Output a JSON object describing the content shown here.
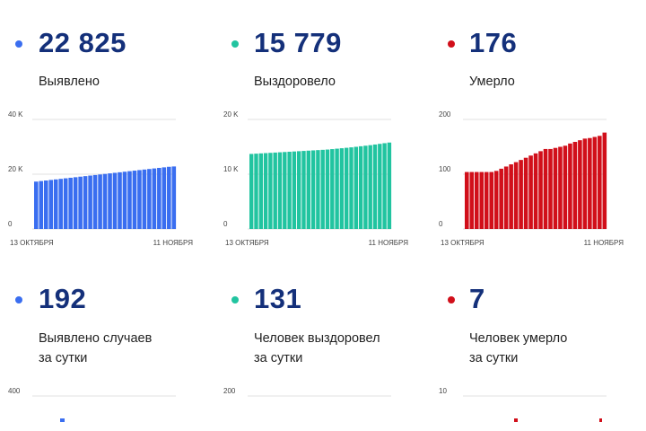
{
  "stats": [
    {
      "value": "22 825",
      "label": "Выявлено",
      "color": "#3a6ef0"
    },
    {
      "value": "15 779",
      "label": "Выздоровело",
      "color": "#21c4a0"
    },
    {
      "value": "176",
      "label": "Умерло",
      "color": "#d10f1a"
    },
    {
      "value": "192",
      "label": "Выявлено случаев\nза сутки",
      "color": "#3a6ef0"
    },
    {
      "value": "131",
      "label": "Человек выздоровел\nза сутки",
      "color": "#21c4a0"
    },
    {
      "value": "7",
      "label": "Человек умерло\nза сутки",
      "color": "#d10f1a"
    }
  ],
  "chart_data": [
    {
      "type": "bar",
      "color": "#3a6ef0",
      "xlabels": [
        "13 ОКТЯБРЯ",
        "11 НОЯБРЯ"
      ],
      "yticks": [
        "0",
        "20 K",
        "40 K"
      ],
      "ylim": [
        0,
        40000
      ],
      "grid": true,
      "values": [
        17300,
        17500,
        17700,
        17900,
        18100,
        18300,
        18500,
        18700,
        18900,
        19100,
        19300,
        19500,
        19700,
        19900,
        20100,
        20300,
        20500,
        20700,
        20900,
        21100,
        21300,
        21500,
        21700,
        21900,
        22100,
        22300,
        22500,
        22700,
        22825
      ]
    },
    {
      "type": "bar",
      "color": "#21c4a0",
      "xlabels": [
        "13 ОКТЯБРЯ",
        "11 НОЯБРЯ"
      ],
      "yticks": [
        "0",
        "10 K",
        "20 K"
      ],
      "ylim": [
        0,
        20000
      ],
      "grid": true,
      "values": [
        13700,
        13750,
        13800,
        13850,
        13900,
        13950,
        14000,
        14050,
        14100,
        14150,
        14200,
        14250,
        14300,
        14350,
        14400,
        14450,
        14500,
        14580,
        14660,
        14740,
        14820,
        14900,
        15000,
        15100,
        15200,
        15300,
        15420,
        15540,
        15660,
        15779
      ]
    },
    {
      "type": "bar",
      "color": "#d10f1a",
      "xlabels": [
        "13 ОКТЯБРЯ",
        "11 НОЯБРЯ"
      ],
      "yticks": [
        "0",
        "100",
        "200"
      ],
      "ylim": [
        0,
        200
      ],
      "grid": true,
      "values": [
        104,
        104,
        104,
        104,
        104,
        104,
        106,
        110,
        114,
        118,
        122,
        126,
        130,
        134,
        138,
        142,
        146,
        146,
        148,
        150,
        152,
        156,
        159,
        162,
        165,
        166,
        168,
        170,
        176
      ]
    },
    {
      "type": "bar",
      "color": "#3a6ef0",
      "yticks": [
        "400"
      ],
      "ylim": [
        0,
        400
      ],
      "grid": true,
      "values": []
    },
    {
      "type": "bar",
      "color": "#21c4a0",
      "yticks": [
        "200"
      ],
      "ylim": [
        0,
        200
      ],
      "grid": true,
      "values": []
    },
    {
      "type": "bar",
      "color": "#d10f1a",
      "yticks": [
        "10"
      ],
      "ylim": [
        0,
        10
      ],
      "grid": true,
      "values": []
    }
  ]
}
